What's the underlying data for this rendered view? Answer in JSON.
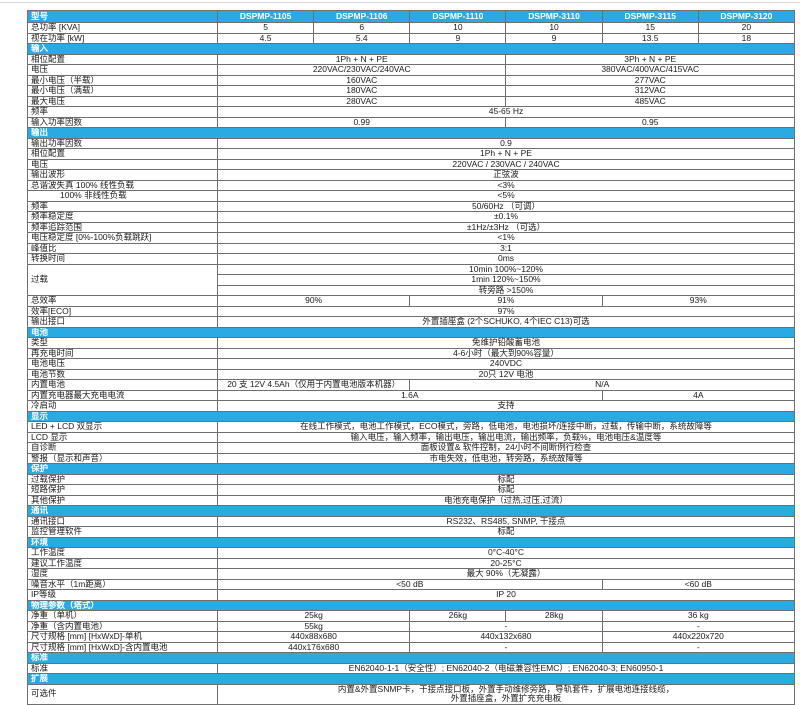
{
  "colors": {
    "accent": "#29abe2",
    "border": "#6f6f6f"
  },
  "table": {
    "label_col_width": 190,
    "header_label": "型号",
    "models": [
      "DSPMP-1105",
      "DSPMP-1106",
      "DSPMP-1110",
      "DSPMP-3110",
      "DSPMP-3115",
      "DSPMP-3120"
    ],
    "rows": [
      {
        "label": "总功率 [KVA]",
        "cells": [
          {
            "t": "5",
            "s": 1
          },
          {
            "t": "6",
            "s": 1
          },
          {
            "t": "10",
            "s": 1
          },
          {
            "t": "10",
            "s": 1
          },
          {
            "t": "15",
            "s": 1
          },
          {
            "t": "20",
            "s": 1
          }
        ]
      },
      {
        "label": "视在功率 [kW]",
        "cells": [
          {
            "t": "4.5",
            "s": 1
          },
          {
            "t": "5.4",
            "s": 1
          },
          {
            "t": "9",
            "s": 1
          },
          {
            "t": "9",
            "s": 1
          },
          {
            "t": "13.5",
            "s": 1
          },
          {
            "t": "18",
            "s": 1
          }
        ]
      },
      {
        "section": "输入"
      },
      {
        "label": "相位配置",
        "cells": [
          {
            "t": "1Ph + N + PE",
            "s": 3
          },
          {
            "t": "3Ph + N + PE",
            "s": 3
          }
        ]
      },
      {
        "label": "电压",
        "cells": [
          {
            "t": "220VAC/230VAC/240VAC",
            "s": 3
          },
          {
            "t": "380VAC/400VAC/415VAC",
            "s": 3
          }
        ]
      },
      {
        "label": "最小电压（半载）",
        "cells": [
          {
            "t": "160VAC",
            "s": 3
          },
          {
            "t": "277VAC",
            "s": 3
          }
        ]
      },
      {
        "label": "最小电压（满载）",
        "cells": [
          {
            "t": "180VAC",
            "s": 3
          },
          {
            "t": "312VAC",
            "s": 3
          }
        ]
      },
      {
        "label": "最大电压",
        "cells": [
          {
            "t": "280VAC",
            "s": 3
          },
          {
            "t": "485VAC",
            "s": 3
          }
        ]
      },
      {
        "label": "频率",
        "cells": [
          {
            "t": "45-65 Hz",
            "s": 6
          }
        ]
      },
      {
        "label": "输入功率因数",
        "cells": [
          {
            "t": "0.99",
            "s": 3
          },
          {
            "t": "0.95",
            "s": 3
          }
        ]
      },
      {
        "section": "输出"
      },
      {
        "label": "输出功率因数",
        "cells": [
          {
            "t": "0.9",
            "s": 6
          }
        ]
      },
      {
        "label": "相位配置",
        "cells": [
          {
            "t": "1Ph + N + PE",
            "s": 6
          }
        ]
      },
      {
        "label": "电压",
        "cells": [
          {
            "t": "220VAC / 230VAC / 240VAC",
            "s": 6
          }
        ]
      },
      {
        "label": "输出波形",
        "cells": [
          {
            "t": "正弦波",
            "s": 6
          }
        ]
      },
      {
        "label": "总谐波失真  100%  线性负载",
        "cells": [
          {
            "t": "<3%",
            "s": 6
          }
        ]
      },
      {
        "label": "100%  非线性负载",
        "indent": true,
        "cells": [
          {
            "t": "<5%",
            "s": 6
          }
        ]
      },
      {
        "label": "频率",
        "cells": [
          {
            "t": "50/60Hz （可调）",
            "s": 6
          }
        ]
      },
      {
        "label": "频率稳定度",
        "cells": [
          {
            "t": "±0.1%",
            "s": 6
          }
        ]
      },
      {
        "label": "频率追踪范围",
        "cells": [
          {
            "t": "±1Hz/±3Hz （可选）",
            "s": 6
          }
        ]
      },
      {
        "label": "电压稳定度 [0%-100%负载跳跃]",
        "cells": [
          {
            "t": "<1%",
            "s": 6
          }
        ]
      },
      {
        "label": "峰值比",
        "cells": [
          {
            "t": "3:1",
            "s": 6
          }
        ]
      },
      {
        "label": "转换时间",
        "cells": [
          {
            "t": "0ms",
            "s": 6
          }
        ]
      },
      {
        "label": "过载",
        "rowspan": 3,
        "cells": [
          {
            "t": "10min   100%~120%",
            "s": 6
          }
        ]
      },
      {
        "nolabel": true,
        "cells": [
          {
            "t": "1min   120%~150%",
            "s": 6
          }
        ]
      },
      {
        "nolabel": true,
        "cells": [
          {
            "t": "转旁路   >150%",
            "s": 6
          }
        ]
      },
      {
        "label": "总效率",
        "cells": [
          {
            "t": "90%",
            "s": 2
          },
          {
            "t": "91%",
            "s": 2
          },
          {
            "t": "93%",
            "s": 2
          }
        ]
      },
      {
        "label": "效率[ECO]",
        "cells": [
          {
            "t": "97%",
            "s": 6
          }
        ]
      },
      {
        "label": "输出接口",
        "cells": [
          {
            "t": "外置插座盒 (2个SCHUKO, 4个IEC C13)可选",
            "s": 6
          }
        ]
      },
      {
        "section": "电池"
      },
      {
        "label": "类型",
        "cells": [
          {
            "t": "免维护铅酸蓄电池",
            "s": 6
          }
        ]
      },
      {
        "label": "再充电时间",
        "cells": [
          {
            "t": "4-6小时（最大到90%容量）",
            "s": 6
          }
        ]
      },
      {
        "label": "电池电压",
        "cells": [
          {
            "t": "240VDC",
            "s": 6
          }
        ]
      },
      {
        "label": "电池节数",
        "cells": [
          {
            "t": "20只 12V 电池",
            "s": 6
          }
        ]
      },
      {
        "label": "内置电池",
        "cells": [
          {
            "t": "20 支 12V 4.5Ah（仅用于内置电池版本机器）",
            "s": 2
          },
          {
            "t": "N/A",
            "s": 4
          }
        ]
      },
      {
        "label": "内置充电器最大充电电流",
        "cells": [
          {
            "t": "1.6A",
            "s": 4
          },
          {
            "t": "4A",
            "s": 2
          }
        ]
      },
      {
        "label": "冷启动",
        "cells": [
          {
            "t": "支持",
            "s": 6
          }
        ]
      },
      {
        "section": "显示"
      },
      {
        "label": "LED + LCD  双显示",
        "cells": [
          {
            "t": "在线工作模式，电池工作模式，ECO模式，旁路，低电池，电池损坏/连接中断，过载，传输中断，系统故障等",
            "s": 6
          }
        ]
      },
      {
        "label": "LCD 显示",
        "cells": [
          {
            "t": "输入电压，输入频率，输出电压，输出电流，输出频率，负载%，电池电压&温度等",
            "s": 6
          }
        ]
      },
      {
        "label": "自诊断",
        "cells": [
          {
            "t": "面板设置& 软件控制，24小时不间断例行检查",
            "s": 6
          }
        ]
      },
      {
        "label": "警报（显示和声音）",
        "cells": [
          {
            "t": "市电失效，低电池，转旁路，系统故障等",
            "s": 6
          }
        ]
      },
      {
        "section": "保护"
      },
      {
        "label": "过载保护",
        "cells": [
          {
            "t": "标配",
            "s": 6
          }
        ]
      },
      {
        "label": "短路保护",
        "cells": [
          {
            "t": "标配",
            "s": 6
          }
        ]
      },
      {
        "label": "其他保护",
        "cells": [
          {
            "t": "电池充电保护（过热,过压,过流）",
            "s": 6
          }
        ]
      },
      {
        "section": "通讯"
      },
      {
        "label": "通讯接口",
        "cells": [
          {
            "t": "RS232、RS485, SNMP, 干接点",
            "s": 6
          }
        ]
      },
      {
        "label": "监控管理软件",
        "cells": [
          {
            "t": "标配",
            "s": 6
          }
        ]
      },
      {
        "section": "环境"
      },
      {
        "label": "工作温度",
        "cells": [
          {
            "t": "0°C-40°C",
            "s": 6
          }
        ]
      },
      {
        "label": "建议工作温度",
        "cells": [
          {
            "t": "20-25°C",
            "s": 6
          }
        ]
      },
      {
        "label": "湿度",
        "cells": [
          {
            "t": "最大 90%（无凝露）",
            "s": 6
          }
        ]
      },
      {
        "label": "噪音水平（1m距离）",
        "cells": [
          {
            "t": "<50 dB",
            "s": 4
          },
          {
            "t": "<60 dB",
            "s": 2
          }
        ]
      },
      {
        "label": "IP等级",
        "cells": [
          {
            "t": "IP 20",
            "s": 6
          }
        ]
      },
      {
        "section": "物理参数（塔式）"
      },
      {
        "label": "净重（单机）",
        "cells": [
          {
            "t": "25kg",
            "s": 2
          },
          {
            "t": "26kg",
            "s": 1
          },
          {
            "t": "28kg",
            "s": 1
          },
          {
            "t": "36 kg",
            "s": 2
          }
        ]
      },
      {
        "label": "净重（含内置电池）",
        "cells": [
          {
            "t": "55kg",
            "s": 2
          },
          {
            "t": "-",
            "s": 2
          },
          {
            "t": "-",
            "s": 2
          }
        ]
      },
      {
        "label": "尺寸规格 [mm] [HxWxD]-单机",
        "cells": [
          {
            "t": "440x88x680",
            "s": 2
          },
          {
            "t": "440x132x680",
            "s": 2
          },
          {
            "t": "440x220x720",
            "s": 2
          }
        ]
      },
      {
        "label": "尺寸规格 [mm] [HxWxD]-含内置电池",
        "cells": [
          {
            "t": "440x176x680",
            "s": 2
          },
          {
            "t": "-",
            "s": 2
          },
          {
            "t": "-",
            "s": 2
          }
        ]
      },
      {
        "section": "标准"
      },
      {
        "label": "标准",
        "cells": [
          {
            "t": "EN62040-1-1（安全性）; EN62040-2（电磁兼容性EMC）; EN62040-3; EN60950-1",
            "s": 6
          }
        ]
      },
      {
        "section": "扩展"
      },
      {
        "label": "可选件",
        "cells": [
          {
            "t": "内置&外置SNMP卡，干接点接口板，外置手动维修旁路，导轨套件，扩展电池连接线缆，\n外置插座盒，外置扩充充电板",
            "s": 6,
            "multiline": true
          }
        ]
      }
    ]
  }
}
